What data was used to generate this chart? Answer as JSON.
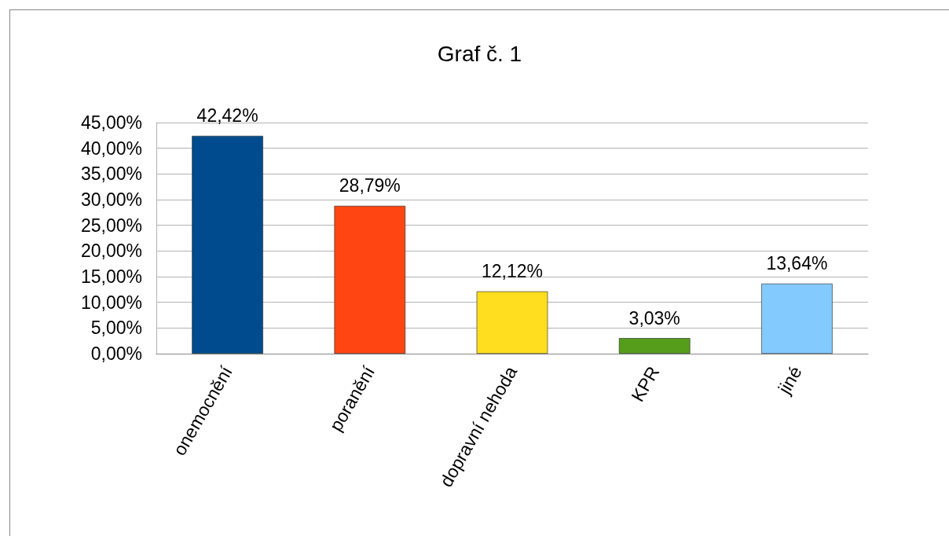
{
  "chart_data": {
    "type": "bar",
    "title": "Graf č. 1",
    "categories": [
      "onemocnění",
      "poranění",
      "dopravní nehoda",
      "KPR",
      "jiné"
    ],
    "values": [
      42.42,
      28.79,
      12.12,
      3.03,
      13.64
    ],
    "colors": [
      "#004b8d",
      "#ff4512",
      "#ffde20",
      "#579d1c",
      "#83caff"
    ],
    "value_labels": [
      "42,42%",
      "28,79%",
      "12,12%",
      "3,03%",
      "13,64%"
    ],
    "ylim": [
      0,
      45
    ],
    "yticks": [
      {
        "value": 0,
        "label": "0,00%"
      },
      {
        "value": 5,
        "label": "5,00%"
      },
      {
        "value": 10,
        "label": "10,00%"
      },
      {
        "value": 15,
        "label": "15,00%"
      },
      {
        "value": 20,
        "label": "20,00%"
      },
      {
        "value": 25,
        "label": "25,00%"
      },
      {
        "value": 30,
        "label": "30,00%"
      },
      {
        "value": 35,
        "label": "35,00%"
      },
      {
        "value": 40,
        "label": "40,00%"
      },
      {
        "value": 45,
        "label": "45,00%"
      }
    ],
    "grid": "y"
  }
}
